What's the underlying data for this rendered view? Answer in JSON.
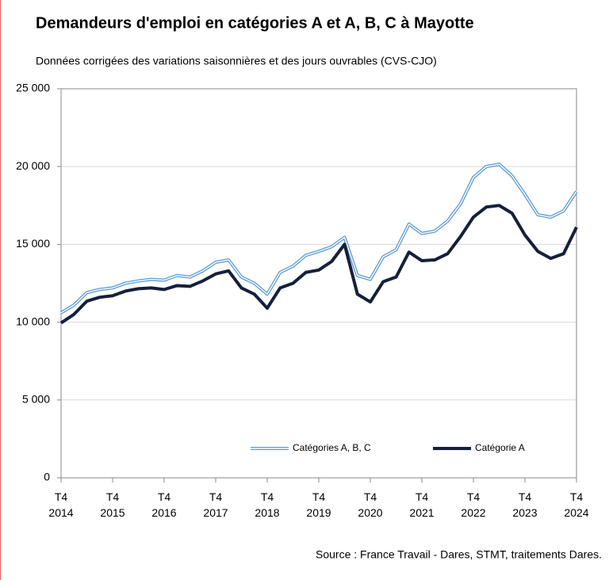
{
  "chart_data": {
    "type": "line",
    "title": "Demandeurs d'emploi en catégories A et A, B, C à Mayotte",
    "subtitle": "Données corrigées des variations saisonnières et des jours ouvrables (CVS-CJO)",
    "source": "Source : France Travail - Dares, STMT, traitements Dares.",
    "categories": [
      "T4 2014",
      null,
      null,
      null,
      "T4 2015",
      null,
      null,
      null,
      "T4 2016",
      null,
      null,
      null,
      "T4 2017",
      null,
      null,
      null,
      "T4 2018",
      null,
      null,
      null,
      "T4 2019",
      null,
      null,
      null,
      "T4 2020",
      null,
      null,
      null,
      "T4 2021",
      null,
      null,
      null,
      "T4 2022",
      null,
      null,
      null,
      "T4 2023",
      null,
      null,
      null,
      "T4 2024"
    ],
    "series": [
      {
        "name": "Catégories A, B, C",
        "color": "#5b9bd5",
        "style": "double",
        "values": [
          10600,
          11100,
          11900,
          12100,
          12200,
          12500,
          12650,
          12750,
          12700,
          13000,
          12900,
          13300,
          13850,
          14000,
          12900,
          12500,
          11800,
          13200,
          13600,
          14300,
          14550,
          14850,
          15450,
          13000,
          12750,
          14200,
          14650,
          16300,
          15700,
          15850,
          16500,
          17600,
          19300,
          20000,
          20150,
          19400,
          18200,
          16900,
          16750,
          17150,
          18400
        ]
      },
      {
        "name": "Catégorie A",
        "color": "#16203a",
        "style": "solid",
        "values": [
          9950,
          10500,
          11350,
          11600,
          11700,
          12000,
          12150,
          12200,
          12100,
          12350,
          12300,
          12650,
          13100,
          13300,
          12200,
          11800,
          10900,
          12200,
          12500,
          13200,
          13350,
          13900,
          15000,
          11800,
          11300,
          12600,
          12900,
          14500,
          13950,
          14000,
          14400,
          15500,
          16750,
          17400,
          17500,
          17000,
          15600,
          14550,
          14100,
          14400,
          16100
        ]
      }
    ],
    "ylim": [
      0,
      25000
    ],
    "yticks": [
      0,
      {
        "value": 5000,
        "label": "5 000"
      },
      {
        "value": 10000,
        "label": "10 000"
      },
      {
        "value": 15000,
        "label": "15 000"
      },
      {
        "value": 20000,
        "label": "20 000"
      },
      {
        "value": 25000,
        "label": "25 000"
      }
    ],
    "grid": true,
    "legend": "bottom"
  }
}
